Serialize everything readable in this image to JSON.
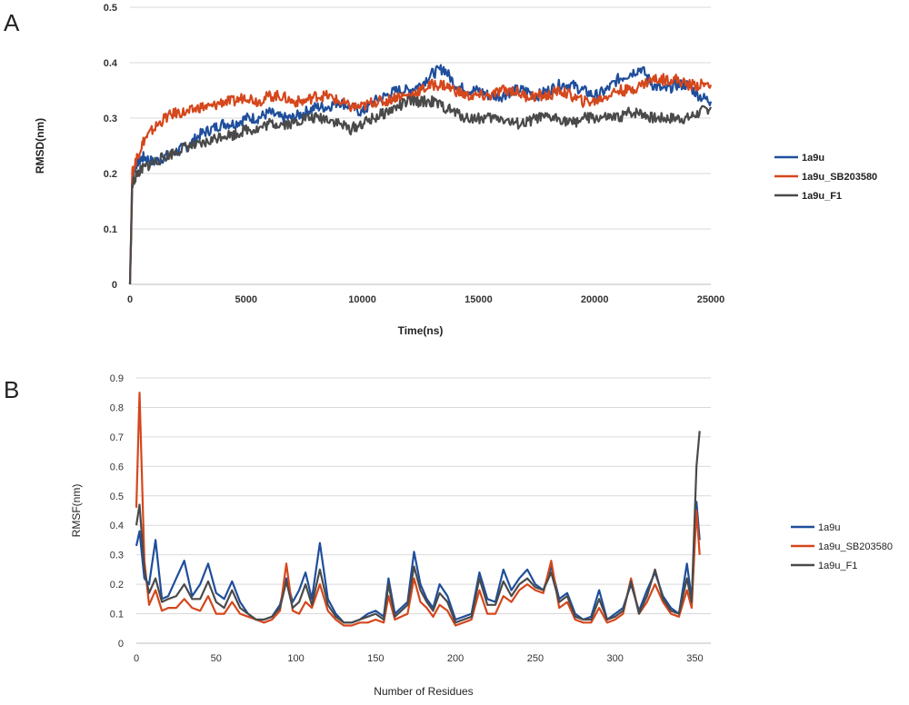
{
  "figure": {
    "panel_a_letter": "A",
    "panel_b_letter": "B"
  },
  "colors": {
    "1a9u": "#1f4e9c",
    "1a9u_SB203580": "#d5471c",
    "1a9u_F1": "#4a4a4a",
    "grid": "#d9d9d9"
  },
  "chart_data": [
    {
      "type": "line",
      "panel": "A",
      "title": "",
      "xlabel": "Time(ns)",
      "ylabel": "RMSD(nm)",
      "xlim": [
        0,
        25000
      ],
      "ylim": [
        0,
        0.5
      ],
      "xticks": [
        "0",
        "5000",
        "10000",
        "15000",
        "20000",
        "25000"
      ],
      "yticks": [
        "0",
        "0.1",
        "0.2",
        "0.3",
        "0.4",
        "0.5"
      ],
      "grid": "horizontal",
      "legend_position": "right",
      "x": [
        0,
        100,
        300,
        600,
        1000,
        1500,
        2000,
        2500,
        3000,
        3500,
        4000,
        4500,
        5000,
        5500,
        6000,
        6500,
        7000,
        7500,
        8000,
        8500,
        9000,
        9500,
        10000,
        10500,
        11000,
        11500,
        12000,
        12500,
        13000,
        13500,
        14000,
        14500,
        15000,
        15500,
        16000,
        16500,
        17000,
        17500,
        18000,
        18500,
        19000,
        19500,
        20000,
        20500,
        21000,
        21500,
        22000,
        22500,
        23000,
        23500,
        24000,
        24500,
        25000
      ],
      "series": [
        {
          "name": "1a9u",
          "values": [
            0.0,
            0.2,
            0.22,
            0.23,
            0.22,
            0.23,
            0.24,
            0.25,
            0.27,
            0.28,
            0.29,
            0.29,
            0.3,
            0.3,
            0.31,
            0.3,
            0.3,
            0.31,
            0.32,
            0.32,
            0.33,
            0.32,
            0.31,
            0.33,
            0.34,
            0.35,
            0.35,
            0.36,
            0.38,
            0.39,
            0.36,
            0.35,
            0.35,
            0.34,
            0.34,
            0.35,
            0.35,
            0.34,
            0.35,
            0.36,
            0.36,
            0.35,
            0.34,
            0.35,
            0.37,
            0.38,
            0.39,
            0.36,
            0.35,
            0.36,
            0.36,
            0.34,
            0.33
          ]
        },
        {
          "name": "1a9u_SB203580",
          "values": [
            0.0,
            0.2,
            0.23,
            0.26,
            0.28,
            0.3,
            0.31,
            0.31,
            0.32,
            0.32,
            0.33,
            0.33,
            0.34,
            0.33,
            0.34,
            0.34,
            0.33,
            0.33,
            0.34,
            0.34,
            0.33,
            0.32,
            0.32,
            0.33,
            0.33,
            0.34,
            0.34,
            0.35,
            0.36,
            0.36,
            0.35,
            0.34,
            0.34,
            0.34,
            0.35,
            0.35,
            0.34,
            0.34,
            0.34,
            0.35,
            0.34,
            0.33,
            0.33,
            0.34,
            0.35,
            0.35,
            0.36,
            0.37,
            0.37,
            0.37,
            0.36,
            0.36,
            0.36
          ]
        },
        {
          "name": "1a9u_F1",
          "values": [
            0.0,
            0.18,
            0.2,
            0.21,
            0.22,
            0.23,
            0.24,
            0.25,
            0.25,
            0.26,
            0.27,
            0.27,
            0.28,
            0.28,
            0.29,
            0.29,
            0.29,
            0.3,
            0.3,
            0.3,
            0.29,
            0.28,
            0.29,
            0.3,
            0.31,
            0.32,
            0.33,
            0.33,
            0.33,
            0.32,
            0.31,
            0.3,
            0.3,
            0.3,
            0.3,
            0.29,
            0.29,
            0.3,
            0.3,
            0.3,
            0.29,
            0.3,
            0.3,
            0.3,
            0.3,
            0.31,
            0.31,
            0.3,
            0.3,
            0.3,
            0.3,
            0.31,
            0.32
          ]
        }
      ]
    },
    {
      "type": "line",
      "panel": "B",
      "title": "",
      "xlabel": "Number of Residues",
      "ylabel": "RMSF(nm)",
      "xlim": [
        0,
        360
      ],
      "ylim": [
        0,
        0.9
      ],
      "xticks": [
        "0",
        "50",
        "100",
        "150",
        "200",
        "250",
        "300",
        "350"
      ],
      "yticks": [
        "0",
        "0.1",
        "0.2",
        "0.3",
        "0.4",
        "0.5",
        "0.6",
        "0.7",
        "0.8",
        "0.9"
      ],
      "grid": "horizontal",
      "legend_position": "right",
      "x": [
        0,
        2,
        5,
        8,
        12,
        16,
        20,
        25,
        30,
        35,
        40,
        45,
        50,
        55,
        60,
        65,
        70,
        75,
        80,
        85,
        90,
        94,
        98,
        102,
        106,
        110,
        115,
        120,
        125,
        130,
        135,
        140,
        145,
        150,
        155,
        158,
        162,
        166,
        170,
        174,
        178,
        182,
        186,
        190,
        195,
        200,
        205,
        210,
        215,
        220,
        225,
        230,
        235,
        240,
        245,
        250,
        255,
        260,
        265,
        270,
        275,
        280,
        285,
        290,
        295,
        300,
        305,
        310,
        315,
        320,
        325,
        330,
        335,
        340,
        345,
        348,
        351,
        353
      ],
      "series": [
        {
          "name": "1a9u",
          "values": [
            0.33,
            0.38,
            0.22,
            0.2,
            0.35,
            0.15,
            0.16,
            0.22,
            0.28,
            0.16,
            0.2,
            0.27,
            0.17,
            0.15,
            0.21,
            0.14,
            0.1,
            0.08,
            0.08,
            0.09,
            0.13,
            0.22,
            0.14,
            0.18,
            0.24,
            0.15,
            0.34,
            0.15,
            0.1,
            0.07,
            0.07,
            0.08,
            0.1,
            0.11,
            0.09,
            0.22,
            0.1,
            0.12,
            0.14,
            0.31,
            0.2,
            0.15,
            0.12,
            0.2,
            0.16,
            0.08,
            0.09,
            0.1,
            0.24,
            0.15,
            0.14,
            0.25,
            0.18,
            0.22,
            0.25,
            0.2,
            0.18,
            0.26,
            0.15,
            0.17,
            0.1,
            0.08,
            0.09,
            0.18,
            0.08,
            0.1,
            0.12,
            0.2,
            0.11,
            0.18,
            0.24,
            0.16,
            0.12,
            0.1,
            0.27,
            0.15,
            0.48,
            0.35
          ]
        },
        {
          "name": "1a9u_SB203580",
          "values": [
            0.46,
            0.85,
            0.28,
            0.13,
            0.18,
            0.11,
            0.12,
            0.12,
            0.15,
            0.12,
            0.11,
            0.16,
            0.1,
            0.1,
            0.14,
            0.1,
            0.09,
            0.08,
            0.07,
            0.08,
            0.11,
            0.27,
            0.11,
            0.1,
            0.14,
            0.12,
            0.2,
            0.11,
            0.08,
            0.06,
            0.06,
            0.07,
            0.07,
            0.08,
            0.07,
            0.16,
            0.08,
            0.09,
            0.1,
            0.22,
            0.14,
            0.12,
            0.09,
            0.13,
            0.11,
            0.06,
            0.07,
            0.08,
            0.18,
            0.1,
            0.1,
            0.16,
            0.14,
            0.18,
            0.2,
            0.18,
            0.17,
            0.28,
            0.12,
            0.14,
            0.08,
            0.07,
            0.07,
            0.12,
            0.07,
            0.08,
            0.1,
            0.22,
            0.1,
            0.14,
            0.2,
            0.14,
            0.1,
            0.09,
            0.18,
            0.12,
            0.45,
            0.3
          ]
        },
        {
          "name": "1a9u_F1",
          "values": [
            0.4,
            0.47,
            0.25,
            0.17,
            0.22,
            0.14,
            0.15,
            0.16,
            0.2,
            0.15,
            0.15,
            0.21,
            0.14,
            0.12,
            0.18,
            0.12,
            0.1,
            0.08,
            0.08,
            0.09,
            0.12,
            0.21,
            0.12,
            0.14,
            0.2,
            0.13,
            0.25,
            0.13,
            0.09,
            0.07,
            0.07,
            0.08,
            0.09,
            0.1,
            0.08,
            0.2,
            0.09,
            0.11,
            0.13,
            0.26,
            0.18,
            0.14,
            0.11,
            0.17,
            0.14,
            0.07,
            0.08,
            0.09,
            0.22,
            0.13,
            0.13,
            0.21,
            0.16,
            0.2,
            0.22,
            0.19,
            0.18,
            0.24,
            0.14,
            0.16,
            0.09,
            0.08,
            0.08,
            0.15,
            0.08,
            0.09,
            0.11,
            0.21,
            0.1,
            0.16,
            0.25,
            0.15,
            0.11,
            0.1,
            0.22,
            0.14,
            0.6,
            0.72
          ]
        }
      ]
    }
  ]
}
